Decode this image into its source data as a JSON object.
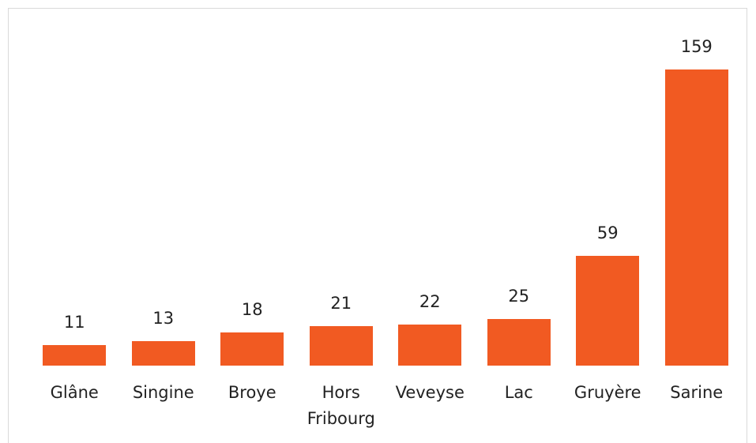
{
  "chart_data": {
    "type": "bar",
    "categories": [
      "Glâne",
      "Singine",
      "Broye",
      "Hors Fribourg",
      "Veveyse",
      "Lac",
      "Gruyère",
      "Sarine"
    ],
    "values": [
      11,
      13,
      18,
      21,
      22,
      25,
      59,
      159
    ],
    "color": "#f15a22"
  }
}
